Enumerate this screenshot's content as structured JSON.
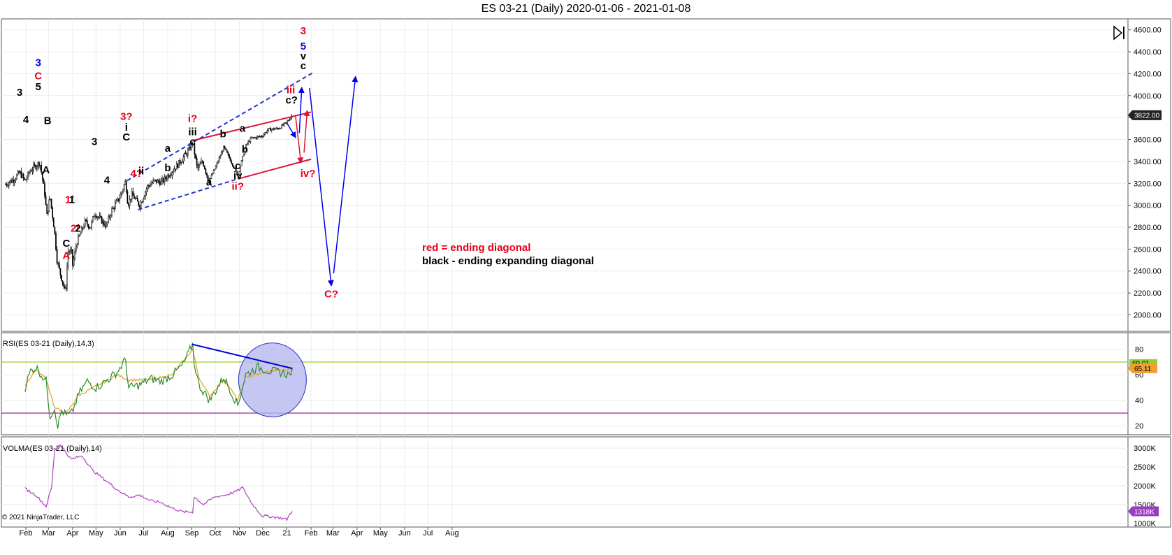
{
  "window": {
    "title": "ES 03-21 (Daily)  2020-01-06 - 2021-01-08"
  },
  "copyright": "© 2021 NinjaTrader, LLC",
  "toolbar": {
    "icon": "play-end-icon"
  },
  "colors": {
    "red": "#e8001c",
    "black": "#000000",
    "blue": "#0000ee",
    "dash_blue": "#2233cc",
    "crimson": "#dc143c",
    "rsi_green": "#2e8b2e",
    "rsi_signal": "#e0a020",
    "volma": "#b040c0",
    "ellipse": "#b8b8f0"
  },
  "chart_data": [
    {
      "type": "candlestick",
      "title": "ES 03-21 (Daily)  2020-01-06 - 2021-01-08",
      "ylim": [
        1850,
        4700
      ],
      "y_ticks": [
        2000,
        2200,
        2400,
        2600,
        2800,
        3000,
        3200,
        3400,
        3600,
        3800,
        4000,
        4200,
        4400,
        4600
      ],
      "y_tick_labels": [
        "2000.00",
        "2200.00",
        "2400.00",
        "2600.00",
        "2800.00",
        "3000.00",
        "3200.00",
        "3400.00",
        "3600.00",
        "3800.00",
        "4000.00",
        "4200.00",
        "4400.00",
        "4600.00"
      ],
      "last_price": "3822.00",
      "x_ticks": [
        "Feb",
        "Mar",
        "Apr",
        "May",
        "Jun",
        "Jul",
        "Aug",
        "Sep",
        "Oct",
        "Nov",
        "Dec",
        "21",
        "Feb",
        "Mar",
        "Apr",
        "May",
        "Jun",
        "Jul",
        "Aug"
      ],
      "close_path": [
        [
          "2020-01-06",
          3190
        ],
        [
          "2020-01-17",
          3240
        ],
        [
          "2020-01-24",
          3300
        ],
        [
          "2020-01-31",
          3220
        ],
        [
          "2020-02-07",
          3320
        ],
        [
          "2020-02-19",
          3390
        ],
        [
          "2020-02-25",
          3120
        ],
        [
          "2020-02-28",
          2900
        ],
        [
          "2020-03-03",
          3080
        ],
        [
          "2020-03-09",
          2750
        ],
        [
          "2020-03-12",
          2500
        ],
        [
          "2020-03-16",
          2380
        ],
        [
          "2020-03-23",
          2200
        ],
        [
          "2020-03-26",
          2580
        ],
        [
          "2020-03-31",
          2570
        ],
        [
          "2020-04-01",
          2450
        ],
        [
          "2020-04-06",
          2650
        ],
        [
          "2020-04-17",
          2850
        ],
        [
          "2020-04-24",
          2800
        ],
        [
          "2020-04-29",
          2930
        ],
        [
          "2020-05-07",
          2870
        ],
        [
          "2020-05-14",
          2810
        ],
        [
          "2020-05-21",
          2950
        ],
        [
          "2020-06-01",
          3080
        ],
        [
          "2020-06-08",
          3220
        ],
        [
          "2020-06-11",
          3000
        ],
        [
          "2020-06-16",
          3100
        ],
        [
          "2020-06-26",
          3000
        ],
        [
          "2020-07-06",
          3170
        ],
        [
          "2020-07-15",
          3220
        ],
        [
          "2020-07-24",
          3210
        ],
        [
          "2020-07-31",
          3260
        ],
        [
          "2020-08-14",
          3370
        ],
        [
          "2020-08-28",
          3500
        ],
        [
          "2020-09-02",
          3580
        ],
        [
          "2020-09-08",
          3330
        ],
        [
          "2020-09-15",
          3400
        ],
        [
          "2020-09-23",
          3220
        ],
        [
          "2020-10-01",
          3340
        ],
        [
          "2020-10-12",
          3530
        ],
        [
          "2020-10-20",
          3420
        ],
        [
          "2020-10-30",
          3270
        ],
        [
          "2020-11-09",
          3540
        ],
        [
          "2020-11-16",
          3610
        ],
        [
          "2020-11-30",
          3630
        ],
        [
          "2020-12-08",
          3690
        ],
        [
          "2020-12-21",
          3700
        ],
        [
          "2020-12-31",
          3750
        ],
        [
          "2021-01-08",
          3822
        ]
      ],
      "annotations": [
        {
          "text": "3",
          "color": "blue",
          "x": "2020-02-17",
          "y": 4270
        },
        {
          "text": "C",
          "color": "red",
          "x": "2020-02-17",
          "y": 4150
        },
        {
          "text": "5",
          "color": "black",
          "x": "2020-02-17",
          "y": 4050
        },
        {
          "text": "3",
          "color": "black",
          "x": "2020-01-24",
          "y": 4000
        },
        {
          "text": "4",
          "color": "black",
          "x": "2020-02-01",
          "y": 3750
        },
        {
          "text": "B",
          "color": "black",
          "x": "2020-02-29",
          "y": 3740
        },
        {
          "text": "A",
          "color": "black",
          "x": "2020-02-27",
          "y": 3290
        },
        {
          "text": "1/",
          "color": "red",
          "x": "2020-03-28",
          "y": 3020
        },
        {
          "text": "1",
          "color": "black",
          "x": "2020-03-31",
          "y": 3020
        },
        {
          "text": "2/",
          "color": "red",
          "x": "2020-04-04",
          "y": 2760
        },
        {
          "text": "2",
          "color": "black",
          "x": "2020-04-08",
          "y": 2760
        },
        {
          "text": "C",
          "color": "black",
          "x": "2020-03-24",
          "y": 2620
        },
        {
          "text": "A",
          "color": "red",
          "x": "2020-03-24",
          "y": 2510
        },
        {
          "text": "3",
          "color": "black",
          "x": "2020-04-29",
          "y": 3550
        },
        {
          "text": "4",
          "color": "black",
          "x": "2020-05-15",
          "y": 3200
        },
        {
          "text": "3?",
          "color": "red",
          "x": "2020-06-09",
          "y": 3780
        },
        {
          "text": "i",
          "color": "black",
          "x": "2020-06-09",
          "y": 3680
        },
        {
          "text": "C",
          "color": "black",
          "x": "2020-06-09",
          "y": 3590
        },
        {
          "text": "4?",
          "color": "red",
          "x": "2020-06-22",
          "y": 3260
        },
        {
          "text": "ii",
          "color": "black",
          "x": "2020-06-28",
          "y": 3280
        },
        {
          "text": "a",
          "color": "black",
          "x": "2020-08-01",
          "y": 3490
        },
        {
          "text": "b",
          "color": "black",
          "x": "2020-08-01",
          "y": 3310
        },
        {
          "text": "i?",
          "color": "red",
          "x": "2020-09-02",
          "y": 3760
        },
        {
          "text": "iii",
          "color": "black",
          "x": "2020-09-02",
          "y": 3640
        },
        {
          "text": "c",
          "color": "black",
          "x": "2020-09-02",
          "y": 3550
        },
        {
          "text": "a",
          "color": "black",
          "x": "2020-09-23",
          "y": 3180
        },
        {
          "text": "b",
          "color": "black",
          "x": "2020-10-11",
          "y": 3620
        },
        {
          "text": "c",
          "color": "black",
          "x": "2020-10-30",
          "y": 3330
        },
        {
          "text": "iv",
          "color": "black",
          "x": "2020-10-30",
          "y": 3240
        },
        {
          "text": "ii?",
          "color": "red",
          "x": "2020-10-30",
          "y": 3140
        },
        {
          "text": "a",
          "color": "black",
          "x": "2020-11-05",
          "y": 3670
        },
        {
          "text": "b",
          "color": "black",
          "x": "2020-11-08",
          "y": 3480
        },
        {
          "text": "iii",
          "color": "red",
          "x": "2021-01-06",
          "y": 4020
        },
        {
          "text": "c?",
          "color": "black",
          "x": "2021-01-07",
          "y": 3930
        },
        {
          "text": "3",
          "color": "red",
          "x": "2021-01-22",
          "y": 4560
        },
        {
          "text": "5",
          "color": "blue",
          "x": "2021-01-22",
          "y": 4420
        },
        {
          "text": "v",
          "color": "black",
          "x": "2021-01-22",
          "y": 4330
        },
        {
          "text": "c",
          "color": "black",
          "x": "2021-01-22",
          "y": 4240
        },
        {
          "text": "iv?",
          "color": "red",
          "x": "2021-01-28",
          "y": 3260
        },
        {
          "text": "C?",
          "color": "red",
          "x": "2021-02-27",
          "y": 2160
        }
      ],
      "notes": [
        {
          "text": "red = ending diagonal",
          "color": "red"
        },
        {
          "text": "black - ending expanding diagonal",
          "color": "black"
        }
      ],
      "trendlines": [
        {
          "style": "dashed",
          "color": "dash_blue",
          "from": [
            "2020-06-10",
            3225
          ],
          "to": [
            "2021-02-05",
            4215
          ]
        },
        {
          "style": "dashed",
          "color": "dash_blue",
          "from": [
            "2020-06-24",
            2960
          ],
          "to": [
            "2020-10-30",
            3240
          ]
        },
        {
          "style": "solid",
          "color": "crimson",
          "from": [
            "2020-09-02",
            3590
          ],
          "to": [
            "2021-02-01",
            3850
          ]
        },
        {
          "style": "solid",
          "color": "crimson",
          "from": [
            "2020-10-30",
            3240
          ],
          "to": [
            "2021-02-01",
            3420
          ]
        }
      ],
      "projection_arrows": [
        {
          "color": "blue",
          "from": [
            "2021-01-01",
            3750
          ],
          "to": [
            "2021-01-12",
            3620
          ]
        },
        {
          "color": "blue",
          "from": [
            "2021-01-17",
            3660
          ],
          "to": [
            "2021-01-20",
            4070
          ]
        },
        {
          "color": "crimson",
          "from": [
            "2021-01-12",
            3820
          ],
          "to": [
            "2021-01-19",
            3390
          ]
        },
        {
          "color": "crimson",
          "from": [
            "2021-01-23",
            3480
          ],
          "to": [
            "2021-01-27",
            3860
          ]
        },
        {
          "color": "blue",
          "from": [
            "2021-01-30",
            4070
          ],
          "to": [
            "2021-02-27",
            2270
          ]
        },
        {
          "color": "blue",
          "from": [
            "2021-03-02",
            2380
          ],
          "to": [
            "2021-03-30",
            4170
          ]
        }
      ]
    },
    {
      "type": "line",
      "title": "RSI(ES 03-21 (Daily),14,3)",
      "ylim": [
        13,
        93
      ],
      "y_ticks": [
        20,
        40,
        60,
        80
      ],
      "levels": [
        70,
        30
      ],
      "last_value": "65.11",
      "upper_badge": "69.01",
      "series": [
        {
          "x": [
            "2020-01-31",
            "2020-02-07",
            "2020-02-14",
            "2020-02-21",
            "2020-02-27",
            "2020-03-03",
            "2020-03-09",
            "2020-03-13",
            "2020-03-18",
            "2020-03-24",
            "2020-03-31",
            "2020-04-09",
            "2020-04-20",
            "2020-05-01",
            "2020-05-14",
            "2020-05-28",
            "2020-06-08",
            "2020-06-12",
            "2020-06-26",
            "2020-07-10",
            "2020-07-24",
            "2020-08-07",
            "2020-08-21",
            "2020-09-02",
            "2020-09-04",
            "2020-09-10",
            "2020-09-24",
            "2020-10-12",
            "2020-10-22",
            "2020-10-30",
            "2020-11-09",
            "2020-11-25",
            "2020-12-10",
            "2020-12-24",
            "2021-01-04",
            "2021-01-08"
          ],
          "y": [
            50,
            63,
            66,
            60,
            55,
            28,
            34,
            20,
            32,
            28,
            30,
            45,
            55,
            50,
            55,
            62,
            72,
            50,
            52,
            57,
            55,
            60,
            68,
            84,
            70,
            52,
            40,
            58,
            46,
            36,
            60,
            66,
            63,
            62,
            60,
            65
          ]
        },
        {
          "x": [
            "2020-01-31",
            "2020-02-14",
            "2020-02-27",
            "2020-03-09",
            "2020-03-24",
            "2020-04-09",
            "2020-05-01",
            "2020-05-28",
            "2020-06-12",
            "2020-07-10",
            "2020-08-07",
            "2020-09-02",
            "2020-09-10",
            "2020-09-24",
            "2020-10-12",
            "2020-10-30",
            "2020-11-09",
            "2020-12-10",
            "2021-01-08"
          ],
          "y": [
            52,
            64,
            57,
            34,
            30,
            44,
            51,
            60,
            56,
            56,
            60,
            80,
            58,
            43,
            57,
            40,
            58,
            63,
            64
          ]
        }
      ],
      "trendline": {
        "from": [
          "2020-09-01",
          84
        ],
        "to": [
          "2021-01-08",
          65
        ]
      },
      "highlight_ellipse": {
        "from": "2020-10-31",
        "to": "2021-01-26",
        "y": [
          27,
          85
        ]
      }
    },
    {
      "type": "line",
      "title": "VOLMA(ES 03-21 (Daily),14)",
      "ylim": [
        900,
        3300
      ],
      "y_ticks": [
        1000,
        1500,
        2000,
        2500,
        3000
      ],
      "y_tick_labels": [
        "1000K",
        "1500K",
        "2000K",
        "2500K",
        "3000K"
      ],
      "last_value": "1318K",
      "series": [
        {
          "x": [
            "2020-01-31",
            "2020-02-14",
            "2020-02-27",
            "2020-03-05",
            "2020-03-09",
            "2020-03-16",
            "2020-03-30",
            "2020-04-13",
            "2020-04-27",
            "2020-05-13",
            "2020-05-28",
            "2020-06-12",
            "2020-06-26",
            "2020-07-10",
            "2020-07-24",
            "2020-08-07",
            "2020-08-21",
            "2020-09-02",
            "2020-09-04",
            "2020-09-16",
            "2020-09-30",
            "2020-10-14",
            "2020-10-28",
            "2020-11-05",
            "2020-11-18",
            "2020-11-30",
            "2020-12-10",
            "2020-12-22",
            "2021-01-01",
            "2021-01-05",
            "2021-01-08"
          ],
          "y": [
            1920,
            1750,
            1450,
            1950,
            2950,
            3100,
            2700,
            2800,
            2400,
            2150,
            1900,
            1700,
            1750,
            1600,
            1550,
            1400,
            1300,
            1300,
            1700,
            1500,
            1700,
            1750,
            1850,
            1950,
            1500,
            1200,
            1180,
            1150,
            1100,
            1250,
            1318
          ]
        }
      ]
    }
  ]
}
